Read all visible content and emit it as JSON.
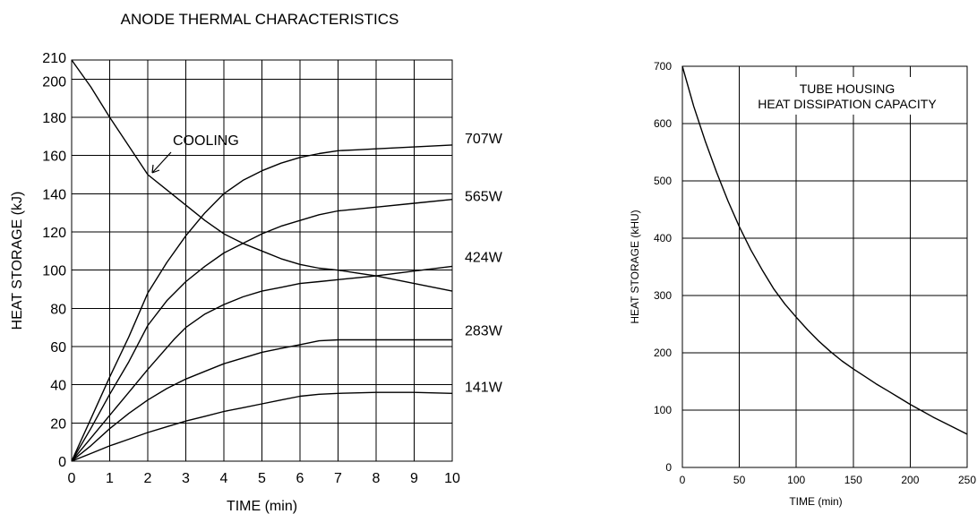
{
  "chart_data": [
    {
      "type": "line",
      "title": "ANODE THERMAL CHARACTERISTICS",
      "xlabel": "TIME (min)",
      "ylabel": "HEAT STORAGE (kJ)",
      "xlim": [
        0,
        10
      ],
      "ylim": [
        0,
        210
      ],
      "x_ticks": [
        "0",
        "1",
        "2",
        "3",
        "4",
        "5",
        "6",
        "7",
        "8",
        "9",
        "10"
      ],
      "y_ticks": [
        "0",
        "20",
        "40",
        "60",
        "80",
        "100",
        "120",
        "140",
        "160",
        "180",
        "200",
        "210"
      ],
      "grid": true,
      "annotation": "COOLING",
      "series": [
        {
          "name": "707W",
          "x": [
            0,
            0.5,
            1,
            1.5,
            2,
            2.5,
            3,
            3.5,
            4,
            4.5,
            5,
            5.5,
            6,
            6.5,
            7,
            7.5,
            8,
            9,
            10
          ],
          "values": [
            0,
            22,
            44,
            65,
            88,
            104,
            118,
            130,
            140,
            147,
            152,
            156,
            159,
            161,
            162.5,
            163,
            163.5,
            164.5,
            165.5
          ]
        },
        {
          "name": "565W",
          "x": [
            0,
            0.5,
            1,
            1.5,
            2,
            2.5,
            3,
            3.5,
            4,
            4.5,
            5,
            5.5,
            6,
            6.5,
            7,
            7.5,
            8,
            9,
            10
          ],
          "values": [
            0,
            17,
            35,
            52,
            71,
            84,
            94,
            102,
            109,
            114,
            119,
            123,
            126,
            129,
            131,
            132,
            133,
            135,
            137
          ]
        },
        {
          "name": "424W",
          "x": [
            0,
            0.5,
            1,
            1.5,
            2,
            2.7,
            3,
            3.5,
            4,
            4.5,
            5,
            5.5,
            6,
            6.5,
            7,
            7.5,
            8,
            9,
            10
          ],
          "values": [
            0,
            12,
            24,
            36,
            48,
            64,
            70,
            77,
            82,
            86,
            89,
            91,
            93,
            94,
            95,
            96,
            97,
            99.5,
            102
          ]
        },
        {
          "name": "283W",
          "x": [
            0,
            0.5,
            1,
            1.5,
            2,
            2.5,
            3,
            3.5,
            4,
            4.5,
            5,
            5.5,
            6,
            6.5,
            7,
            8,
            9,
            10
          ],
          "values": [
            0,
            8,
            17,
            25,
            32,
            38,
            43,
            47,
            51,
            54,
            57,
            59,
            61,
            63,
            63.5,
            63.5,
            63.5,
            63.5
          ]
        },
        {
          "name": "141W",
          "x": [
            0,
            0.5,
            1,
            1.5,
            2,
            2.5,
            3,
            3.5,
            4,
            4.5,
            5,
            5.5,
            6,
            6.5,
            7,
            8,
            9,
            10
          ],
          "values": [
            0,
            4,
            8,
            11.5,
            15,
            18,
            21,
            23.5,
            26,
            28,
            30,
            32,
            34,
            35,
            35.5,
            36,
            36,
            35.5
          ]
        },
        {
          "name": "COOLING",
          "x": [
            0,
            0.5,
            1,
            1.5,
            2,
            2.5,
            3,
            3.5,
            4,
            4.5,
            5,
            5.5,
            6,
            6.5,
            7,
            7.5,
            8,
            9,
            10
          ],
          "values": [
            210,
            196,
            180,
            165,
            150,
            142,
            134,
            126,
            119,
            114,
            110,
            106,
            103,
            101,
            100,
            98.5,
            97,
            93,
            89
          ]
        }
      ]
    },
    {
      "type": "line",
      "title": "TUBE HOUSING\nHEAT DISSIPATION CAPACITY",
      "title_lines": [
        "TUBE HOUSING",
        "HEAT DISSIPATION CAPACITY"
      ],
      "xlabel": "TIME (min)",
      "ylabel": "HEAT STORAGE (kHU)",
      "xlim": [
        0,
        250
      ],
      "ylim": [
        0,
        700
      ],
      "x_ticks": [
        "0",
        "50",
        "100",
        "150",
        "200",
        "250"
      ],
      "y_ticks": [
        "0",
        "100",
        "200",
        "300",
        "400",
        "500",
        "600",
        "700"
      ],
      "grid": true,
      "series": [
        {
          "x": [
            0,
            10,
            20,
            30,
            40,
            50,
            60,
            70,
            80,
            90,
            100,
            110,
            120,
            130,
            140,
            150,
            160,
            170,
            180,
            190,
            200,
            210,
            220,
            230,
            240,
            250
          ],
          "values": [
            700,
            630,
            570,
            515,
            465,
            420,
            380,
            345,
            312,
            285,
            262,
            240,
            220,
            202,
            186,
            172,
            159,
            146,
            134,
            122,
            110,
            99,
            88,
            78,
            68,
            58
          ]
        }
      ]
    }
  ]
}
